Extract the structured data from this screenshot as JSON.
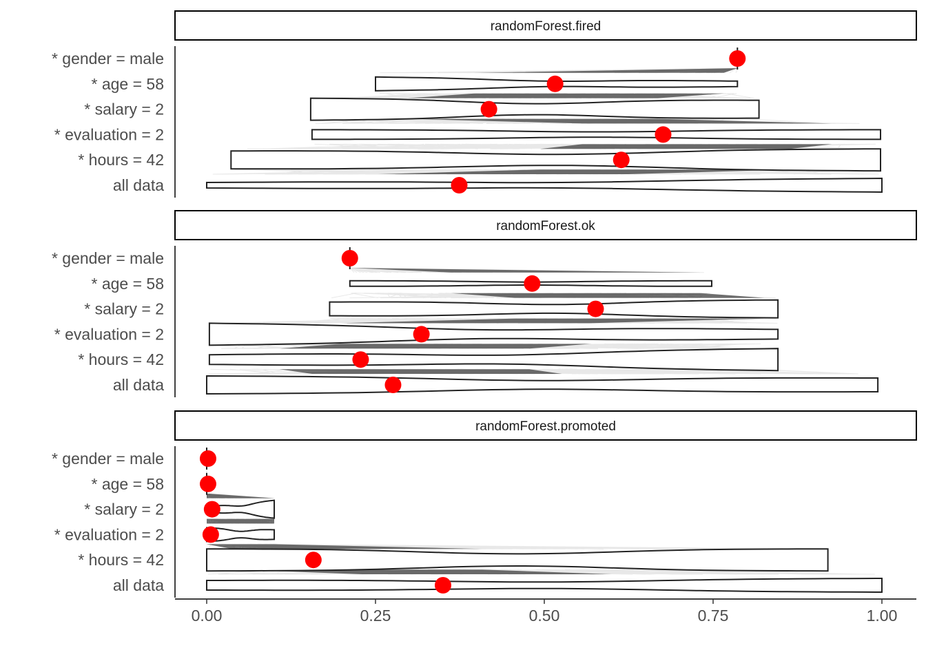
{
  "chart_data": {
    "type": "violin",
    "x_ticks": [
      0,
      0.25,
      0.5,
      0.75,
      1
    ],
    "x_tick_labels": [
      "0.00",
      "0.25",
      "0.50",
      "0.75",
      "1.00"
    ],
    "xlim": [
      -0.048,
      1.048
    ],
    "rows": [
      "* gender = male",
      "* age = 58",
      "* salary = 2",
      "* evaluation = 2",
      "* hours = 42",
      "all data"
    ],
    "point_color": "#ff0000",
    "panels": [
      {
        "title": "randomForest.fired",
        "points": [
          0.786,
          0.516,
          0.418,
          0.676,
          0.614,
          0.374
        ],
        "ranges": [
          [
            0.786,
            0.786
          ],
          [
            0.25,
            0.786
          ],
          [
            0.154,
            0.818
          ],
          [
            0.156,
            0.998
          ],
          [
            0.036,
            0.998
          ],
          [
            0.0,
            1.0
          ]
        ]
      },
      {
        "title": "randomForest.ok",
        "points": [
          0.212,
          0.482,
          0.576,
          0.318,
          0.228,
          0.276
        ],
        "ranges": [
          [
            0.212,
            0.212
          ],
          [
            0.212,
            0.748
          ],
          [
            0.182,
            0.846
          ],
          [
            0.004,
            0.846
          ],
          [
            0.004,
            0.846
          ],
          [
            0.0,
            0.994
          ]
        ]
      },
      {
        "title": "randomForest.promoted",
        "points": [
          0.002,
          0.002,
          0.008,
          0.006,
          0.158,
          0.35
        ],
        "ranges": [
          [
            0.0,
            0.0
          ],
          [
            0.0,
            0.0
          ],
          [
            0.0,
            0.1
          ],
          [
            0.0,
            0.1
          ],
          [
            0.0,
            0.92
          ],
          [
            0.0,
            1.0
          ]
        ]
      }
    ]
  }
}
